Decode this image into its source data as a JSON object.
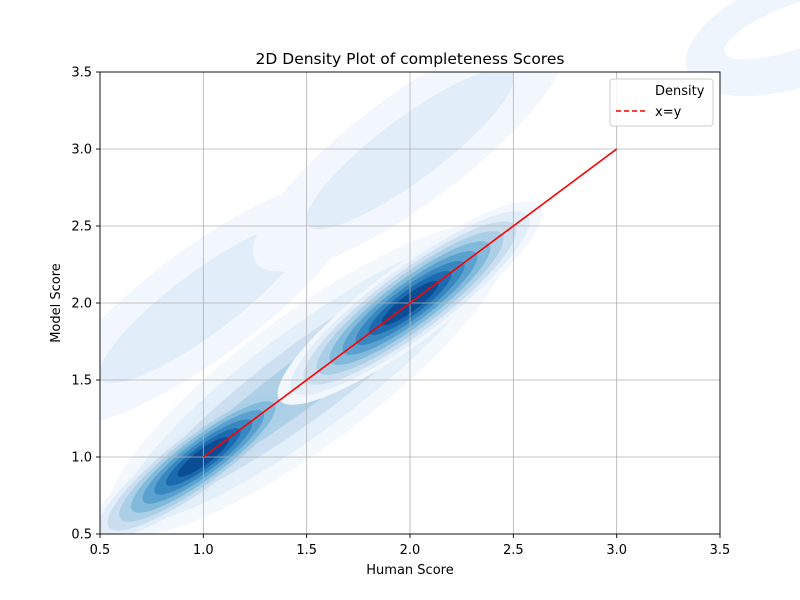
{
  "chart_data": {
    "type": "heatmap",
    "title": "2D Density Plot of completeness Scores",
    "xlabel": "Human Score",
    "ylabel": "Model Score",
    "xlim": [
      0.5,
      3.5
    ],
    "ylim": [
      0.5,
      3.5
    ],
    "xticks": [
      "0.5",
      "1.0",
      "1.5",
      "2.0",
      "2.5",
      "3.0",
      "3.5"
    ],
    "yticks": [
      "0.5",
      "1.0",
      "1.5",
      "2.0",
      "2.5",
      "3.0",
      "3.5"
    ],
    "grid": true,
    "legend_position": "top-right",
    "legend": [
      {
        "label": "Density",
        "style": "none"
      },
      {
        "label": "x=y",
        "style": "dashed",
        "color": "#ff0000"
      }
    ],
    "density_centers": [
      {
        "x": 1.0,
        "y": 1.0,
        "weight": 0.9
      },
      {
        "x": 2.0,
        "y": 2.0,
        "weight": 1.0
      },
      {
        "x": 1.0,
        "y": 2.0,
        "weight": 0.12
      },
      {
        "x": 2.0,
        "y": 3.0,
        "weight": 0.12
      }
    ],
    "reference_line": {
      "label": "x=y",
      "x": [
        1.0,
        3.0
      ],
      "y": [
        1.0,
        3.0
      ],
      "color": "#ff0000"
    },
    "colormap": "Blues"
  }
}
